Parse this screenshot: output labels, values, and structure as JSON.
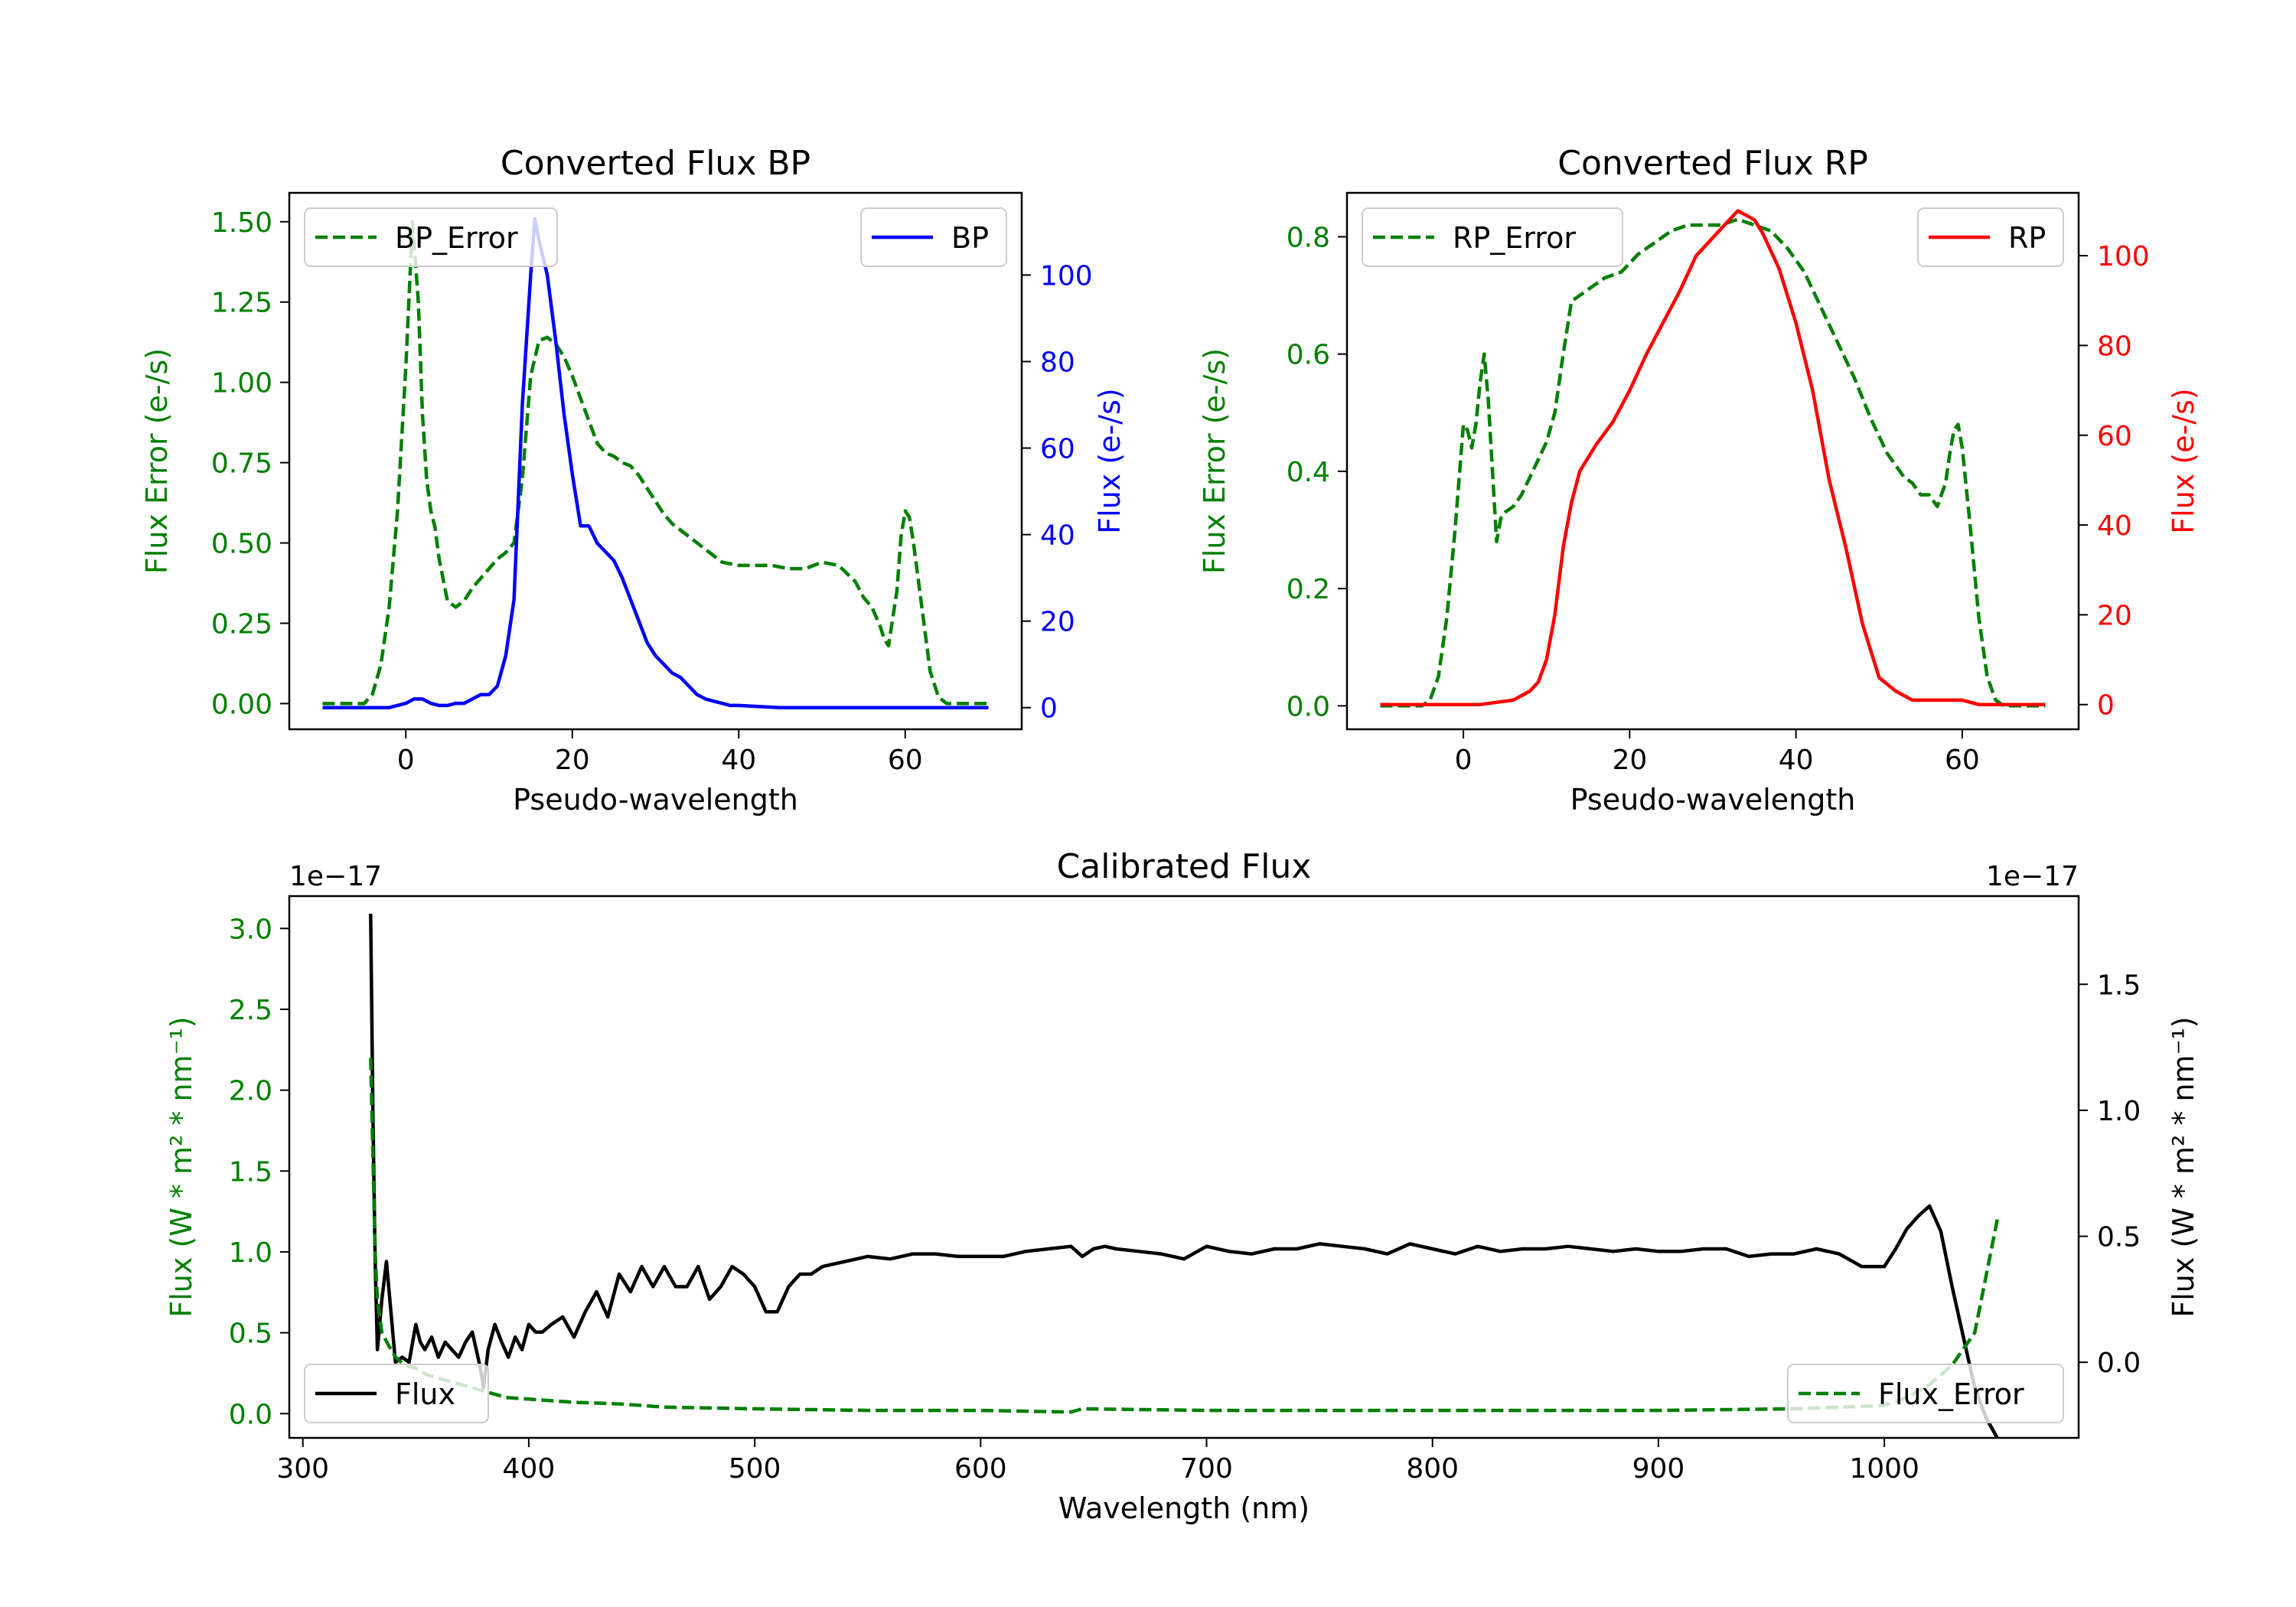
{
  "colors": {
    "error": "#008000",
    "bp": "#0000ff",
    "rp": "#ff0000",
    "flux": "#000000"
  },
  "chart_data": [
    {
      "type": "line",
      "title": "Converted Flux BP",
      "xlabel": "Pseudo-wavelength",
      "ylabel_left": "Flux Error (e-/s)",
      "ylabel_right": "Flux (e-/s)",
      "xlim": [
        -14,
        74
      ],
      "ylim_left": [
        -0.08,
        1.59
      ],
      "ylim_right": [
        -5,
        119
      ],
      "xticks": [
        0,
        20,
        40,
        60
      ],
      "yticks_left": [
        0.0,
        0.25,
        0.5,
        0.75,
        1.0,
        1.25,
        1.5
      ],
      "yticks_left_labels": [
        "0.00",
        "0.25",
        "0.50",
        "0.75",
        "1.00",
        "1.25",
        "1.50"
      ],
      "yticks_right": [
        0,
        20,
        40,
        60,
        80,
        100
      ],
      "yticks_right_labels": [
        "0",
        "20",
        "40",
        "60",
        "80",
        "100"
      ],
      "legend_left": {
        "label": "BP_Error",
        "placement": "upper left"
      },
      "legend_right": {
        "label": "BP",
        "placement": "upper right"
      },
      "series": [
        {
          "name": "BP_Error",
          "axis": "left",
          "style": "dashed",
          "x": [
            -10,
            -5,
            -4,
            -3,
            -2,
            -1,
            0,
            0.8,
            1.5,
            2,
            2.5,
            3,
            3.5,
            4,
            5,
            6,
            7,
            8,
            9,
            10,
            11,
            12,
            13,
            14,
            15,
            16,
            17,
            18,
            19,
            20,
            21,
            22,
            23,
            24,
            25,
            26,
            27,
            28,
            29,
            30,
            31,
            32,
            33,
            34,
            35,
            36,
            37,
            38,
            40,
            42,
            44,
            46,
            48,
            50,
            52,
            54,
            55,
            56,
            57,
            57.5,
            58,
            59,
            59.5,
            60,
            60.5,
            61,
            62,
            63,
            64,
            65,
            66,
            68,
            70
          ],
          "y": [
            0,
            0,
            0.03,
            0.12,
            0.3,
            0.6,
            1.05,
            1.5,
            1.25,
            0.9,
            0.7,
            0.6,
            0.55,
            0.45,
            0.32,
            0.3,
            0.32,
            0.36,
            0.39,
            0.42,
            0.45,
            0.47,
            0.5,
            0.7,
            1.02,
            1.13,
            1.14,
            1.12,
            1.08,
            1.02,
            0.95,
            0.88,
            0.81,
            0.78,
            0.77,
            0.75,
            0.74,
            0.71,
            0.67,
            0.63,
            0.59,
            0.56,
            0.54,
            0.52,
            0.5,
            0.48,
            0.46,
            0.44,
            0.43,
            0.43,
            0.43,
            0.42,
            0.42,
            0.44,
            0.43,
            0.38,
            0.33,
            0.3,
            0.24,
            0.2,
            0.18,
            0.35,
            0.52,
            0.6,
            0.58,
            0.5,
            0.3,
            0.1,
            0.02,
            0,
            0,
            0,
            0
          ]
        },
        {
          "name": "BP",
          "axis": "right",
          "style": "solid",
          "x": [
            -10,
            -5,
            -2,
            0,
            1,
            2,
            3,
            4,
            5,
            6,
            7,
            8,
            9,
            10,
            11,
            12,
            13,
            14,
            15,
            15.5,
            16,
            17,
            18,
            19,
            20,
            21,
            22,
            23,
            24,
            25,
            26,
            27,
            28,
            29,
            30,
            31,
            32,
            33,
            34,
            35,
            36,
            37,
            38,
            39,
            40,
            45,
            50,
            55,
            60,
            65,
            70
          ],
          "y": [
            0,
            0,
            0,
            1,
            2,
            2,
            1,
            0.5,
            0.5,
            1,
            1,
            2,
            3,
            3,
            5,
            12,
            25,
            70,
            100,
            113,
            108,
            100,
            85,
            68,
            54,
            42,
            42,
            38,
            36,
            34,
            30,
            25,
            20,
            15,
            12,
            10,
            8,
            7,
            5,
            3,
            2,
            1.5,
            1,
            0.5,
            0.5,
            0,
            0,
            0,
            0,
            0,
            0
          ]
        }
      ]
    },
    {
      "type": "line",
      "title": "Converted Flux RP",
      "xlabel": "Pseudo-wavelength",
      "ylabel_left": "Flux Error (e-/s)",
      "ylabel_right": "Flux (e-/s)",
      "xlim": [
        -14,
        74
      ],
      "ylim_left": [
        -0.04,
        0.875
      ],
      "ylim_right": [
        -5.5,
        114
      ],
      "xticks": [
        0,
        20,
        40,
        60
      ],
      "yticks_left": [
        0.0,
        0.2,
        0.4,
        0.6,
        0.8
      ],
      "yticks_left_labels": [
        "0.0",
        "0.2",
        "0.4",
        "0.6",
        "0.8"
      ],
      "yticks_right": [
        0,
        20,
        40,
        60,
        80,
        100
      ],
      "yticks_right_labels": [
        "0",
        "20",
        "40",
        "60",
        "80",
        "100"
      ],
      "legend_left": {
        "label": "RP_Error",
        "placement": "upper left"
      },
      "legend_right": {
        "label": "RP",
        "placement": "upper right"
      },
      "series": [
        {
          "name": "RP_Error",
          "axis": "left",
          "style": "dashed",
          "x": [
            -10,
            -5,
            -4,
            -3,
            -2,
            -1,
            0,
            0.5,
            1,
            1.5,
            2,
            2.5,
            3,
            3.5,
            4,
            4.5,
            5,
            6,
            7,
            8,
            9,
            10,
            11,
            12,
            13,
            15,
            17,
            19,
            21,
            23,
            25,
            27,
            29,
            31,
            33,
            35,
            37,
            39,
            41,
            43,
            45,
            47,
            49,
            51,
            53,
            54,
            55,
            56,
            57,
            58,
            58.5,
            59,
            59.5,
            60,
            61,
            62,
            63,
            64,
            65,
            66,
            68,
            70
          ],
          "y": [
            0,
            0,
            0.01,
            0.05,
            0.15,
            0.3,
            0.48,
            0.47,
            0.44,
            0.48,
            0.55,
            0.6,
            0.52,
            0.4,
            0.28,
            0.32,
            0.33,
            0.34,
            0.36,
            0.39,
            0.42,
            0.45,
            0.5,
            0.6,
            0.69,
            0.71,
            0.73,
            0.74,
            0.77,
            0.79,
            0.81,
            0.82,
            0.82,
            0.82,
            0.83,
            0.82,
            0.81,
            0.78,
            0.74,
            0.68,
            0.62,
            0.56,
            0.49,
            0.43,
            0.39,
            0.38,
            0.36,
            0.36,
            0.34,
            0.38,
            0.43,
            0.47,
            0.48,
            0.44,
            0.3,
            0.15,
            0.05,
            0.01,
            0,
            0,
            0,
            0
          ]
        },
        {
          "name": "RP",
          "axis": "right",
          "style": "solid",
          "x": [
            -10,
            -5,
            0,
            2,
            4,
            6,
            8,
            9,
            10,
            11,
            12,
            13,
            14,
            16,
            18,
            20,
            22,
            24,
            26,
            28,
            30,
            32,
            33,
            34,
            35,
            36,
            38,
            40,
            42,
            44,
            46,
            48,
            50,
            52,
            54,
            56,
            58,
            60,
            62,
            65,
            70
          ],
          "y": [
            0,
            0,
            0,
            0,
            0.5,
            1,
            3,
            5,
            10,
            20,
            35,
            45,
            52,
            58,
            63,
            70,
            78,
            85,
            92,
            100,
            104,
            108,
            110,
            109,
            108,
            105,
            97,
            85,
            70,
            50,
            35,
            18,
            6,
            3,
            1,
            1,
            1,
            1,
            0,
            0,
            0
          ]
        }
      ]
    },
    {
      "type": "line",
      "title": "Calibrated Flux",
      "xlabel": "Wavelength (nm)",
      "ylabel_left": "Flux (W * m² * nm⁻¹)",
      "ylabel_right": "Flux (W * m² * nm⁻¹)",
      "offset_left": "1e−17",
      "offset_right": "1e−17",
      "xlim": [
        294,
        1086
      ],
      "ylim_left": [
        -0.15,
        3.2
      ],
      "ylim_right": [
        -0.3,
        1.85
      ],
      "xticks": [
        300,
        400,
        500,
        600,
        700,
        800,
        900,
        1000
      ],
      "yticks_left": [
        0.0,
        0.5,
        1.0,
        1.5,
        2.0,
        2.5,
        3.0
      ],
      "yticks_left_labels": [
        "0.0",
        "0.5",
        "1.0",
        "1.5",
        "2.0",
        "2.5",
        "3.0"
      ],
      "yticks_right": [
        0.0,
        0.5,
        1.0,
        1.5
      ],
      "yticks_right_labels": [
        "0.0",
        "0.5",
        "1.0",
        "1.5"
      ],
      "legend_left": {
        "label": "Flux",
        "placement": "lower left"
      },
      "legend_right": {
        "label": "Flux_Error",
        "placement": "lower right"
      },
      "series": [
        {
          "name": "Flux",
          "axis": "right",
          "style": "solid",
          "x": [
            330,
            331,
            332,
            333,
            335,
            337,
            339,
            341,
            344,
            347,
            350,
            352,
            354,
            357,
            360,
            363,
            366,
            369,
            372,
            375,
            378,
            380,
            382,
            385,
            388,
            391,
            394,
            397,
            400,
            403,
            406,
            410,
            415,
            420,
            425,
            430,
            435,
            440,
            445,
            450,
            455,
            460,
            465,
            470,
            475,
            480,
            485,
            490,
            495,
            500,
            505,
            510,
            515,
            520,
            525,
            530,
            540,
            550,
            560,
            570,
            580,
            590,
            600,
            610,
            620,
            630,
            640,
            645,
            650,
            655,
            660,
            670,
            680,
            690,
            700,
            710,
            720,
            730,
            740,
            750,
            760,
            770,
            780,
            790,
            800,
            810,
            820,
            830,
            840,
            850,
            860,
            870,
            880,
            890,
            900,
            910,
            920,
            930,
            940,
            950,
            960,
            970,
            980,
            990,
            1000,
            1005,
            1010,
            1015,
            1020,
            1025,
            1030,
            1035,
            1040,
            1045,
            1050
          ],
          "y": [
            1.78,
            1.0,
            0.4,
            0.05,
            0.25,
            0.4,
            0.2,
            0.0,
            0.02,
            0.0,
            0.15,
            0.08,
            0.05,
            0.1,
            0.02,
            0.08,
            0.05,
            0.02,
            0.08,
            0.12,
            0.0,
            -0.1,
            0.05,
            0.15,
            0.08,
            0.02,
            0.1,
            0.05,
            0.15,
            0.12,
            0.12,
            0.15,
            0.18,
            0.1,
            0.2,
            0.28,
            0.18,
            0.35,
            0.28,
            0.38,
            0.3,
            0.38,
            0.3,
            0.3,
            0.38,
            0.25,
            0.3,
            0.38,
            0.35,
            0.3,
            0.2,
            0.2,
            0.3,
            0.35,
            0.35,
            0.38,
            0.4,
            0.42,
            0.41,
            0.43,
            0.43,
            0.42,
            0.42,
            0.42,
            0.44,
            0.45,
            0.46,
            0.42,
            0.45,
            0.46,
            0.45,
            0.44,
            0.43,
            0.41,
            0.46,
            0.44,
            0.43,
            0.45,
            0.45,
            0.47,
            0.46,
            0.45,
            0.43,
            0.47,
            0.45,
            0.43,
            0.46,
            0.44,
            0.45,
            0.45,
            0.46,
            0.45,
            0.44,
            0.45,
            0.44,
            0.44,
            0.45,
            0.45,
            0.42,
            0.43,
            0.43,
            0.45,
            0.43,
            0.38,
            0.38,
            0.45,
            0.53,
            0.58,
            0.62,
            0.52,
            0.3,
            0.1,
            -0.1,
            -0.22,
            -0.3
          ]
        },
        {
          "name": "Flux_Error",
          "axis": "left",
          "style": "dashed",
          "x": [
            330,
            331,
            332,
            333,
            335,
            338,
            341,
            345,
            350,
            355,
            360,
            370,
            380,
            390,
            400,
            420,
            440,
            460,
            500,
            550,
            600,
            640,
            645,
            700,
            800,
            900,
            960,
            1000,
            1010,
            1020,
            1030,
            1040,
            1045,
            1050
          ],
          "y": [
            2.2,
            1.6,
            1.0,
            0.7,
            0.5,
            0.42,
            0.35,
            0.3,
            0.28,
            0.24,
            0.22,
            0.18,
            0.14,
            0.1,
            0.09,
            0.07,
            0.06,
            0.04,
            0.03,
            0.02,
            0.02,
            0.01,
            0.03,
            0.02,
            0.02,
            0.02,
            0.03,
            0.05,
            0.1,
            0.18,
            0.3,
            0.5,
            0.85,
            1.2
          ]
        }
      ]
    }
  ]
}
